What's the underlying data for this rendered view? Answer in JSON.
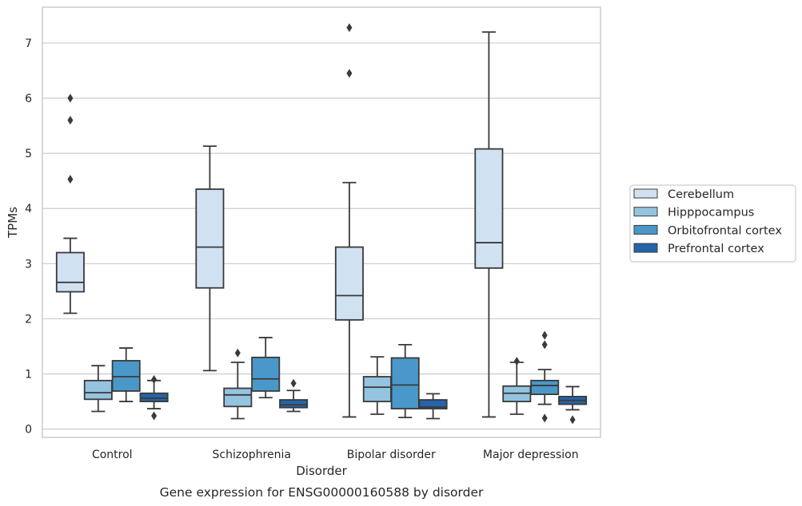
{
  "caption": "Gene expression for ENSG00000160588 by disorder",
  "chart_data": {
    "type": "box",
    "xlabel": "Disorder",
    "ylabel": "TPMs",
    "ylim": [
      -0.15,
      7.65
    ],
    "yticks": [
      0,
      1,
      2,
      3,
      4,
      5,
      6,
      7
    ],
    "grid": true,
    "legend_placement": "right",
    "categories": [
      "Control",
      "Schizophrenia",
      "Bipolar disorder",
      "Major depression"
    ],
    "series": [
      {
        "name": "Cerebellum",
        "color": "#d0e1f2",
        "boxes": [
          {
            "whisker_low": 2.1,
            "q1": 2.49,
            "median": 2.66,
            "q3": 3.2,
            "whisker_high": 3.46,
            "outliers": [
              4.53,
              5.6,
              6.0
            ]
          },
          {
            "whisker_low": 1.06,
            "q1": 2.56,
            "median": 3.3,
            "q3": 4.35,
            "whisker_high": 5.13,
            "outliers": []
          },
          {
            "whisker_low": 0.22,
            "q1": 1.98,
            "median": 2.42,
            "q3": 3.3,
            "whisker_high": 4.47,
            "outliers": [
              6.45,
              7.28
            ]
          },
          {
            "whisker_low": 0.22,
            "q1": 2.92,
            "median": 3.38,
            "q3": 5.08,
            "whisker_high": 7.2,
            "outliers": []
          }
        ]
      },
      {
        "name": "Hipppocampus",
        "color": "#94c4df",
        "boxes": [
          {
            "whisker_low": 0.32,
            "q1": 0.54,
            "median": 0.66,
            "q3": 0.88,
            "whisker_high": 1.15,
            "outliers": []
          },
          {
            "whisker_low": 0.19,
            "q1": 0.41,
            "median": 0.62,
            "q3": 0.74,
            "whisker_high": 1.21,
            "outliers": [
              1.38
            ]
          },
          {
            "whisker_low": 0.27,
            "q1": 0.5,
            "median": 0.76,
            "q3": 0.95,
            "whisker_high": 1.31,
            "outliers": []
          },
          {
            "whisker_low": 0.27,
            "q1": 0.5,
            "median": 0.65,
            "q3": 0.78,
            "whisker_high": 1.21,
            "outliers": [
              1.23
            ]
          }
        ]
      },
      {
        "name": "Orbitofrontal cortex",
        "color": "#4a98c9",
        "boxes": [
          {
            "whisker_low": 0.5,
            "q1": 0.69,
            "median": 0.95,
            "q3": 1.24,
            "whisker_high": 1.47,
            "outliers": []
          },
          {
            "whisker_low": 0.57,
            "q1": 0.69,
            "median": 0.91,
            "q3": 1.3,
            "whisker_high": 1.66,
            "outliers": []
          },
          {
            "whisker_low": 0.21,
            "q1": 0.37,
            "median": 0.8,
            "q3": 1.29,
            "whisker_high": 1.53,
            "outliers": []
          },
          {
            "whisker_low": 0.45,
            "q1": 0.63,
            "median": 0.79,
            "q3": 0.88,
            "whisker_high": 1.08,
            "outliers": [
              0.2,
              1.53,
              1.7
            ]
          }
        ]
      },
      {
        "name": "Prefrontal cortex",
        "color": "#2464ab",
        "boxes": [
          {
            "whisker_low": 0.37,
            "q1": 0.5,
            "median": 0.56,
            "q3": 0.65,
            "whisker_high": 0.88,
            "outliers": [
              0.24,
              0.9
            ]
          },
          {
            "whisker_low": 0.32,
            "q1": 0.39,
            "median": 0.44,
            "q3": 0.53,
            "whisker_high": 0.7,
            "outliers": [
              0.83
            ]
          },
          {
            "whisker_low": 0.19,
            "q1": 0.37,
            "median": 0.4,
            "q3": 0.53,
            "whisker_high": 0.64,
            "outliers": []
          },
          {
            "whisker_low": 0.35,
            "q1": 0.45,
            "median": 0.52,
            "q3": 0.59,
            "whisker_high": 0.77,
            "outliers": [
              0.17
            ]
          }
        ]
      }
    ]
  }
}
